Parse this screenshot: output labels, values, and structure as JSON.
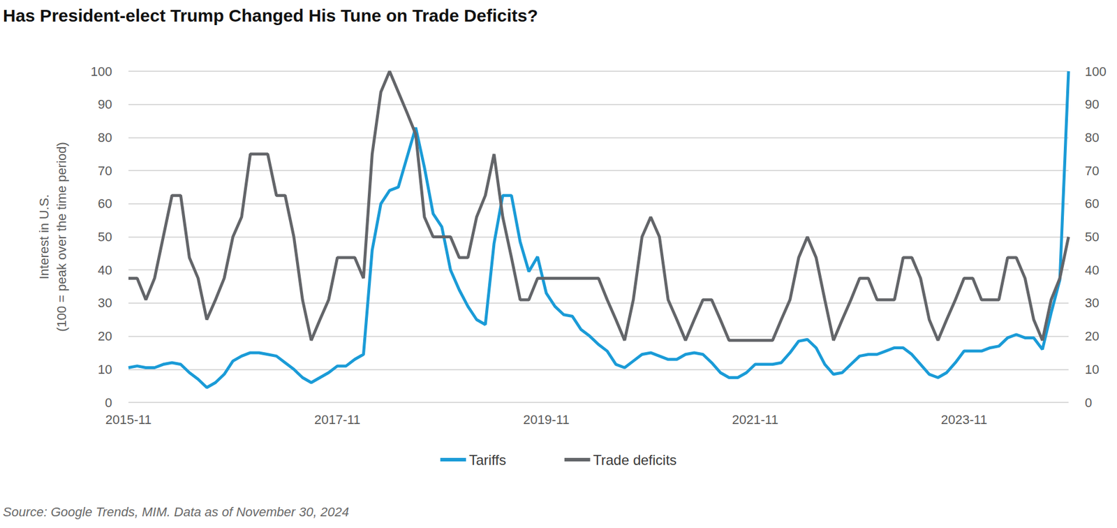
{
  "chart_data": {
    "type": "line",
    "title": "Has President-elect Trump Changed His Tune on Trade Deficits?",
    "y_label": "Interest in U.S.\n(100 = peak over the time period)",
    "source": "Source: Google Trends, MIM. Data as of November 30, 2024",
    "categories": [
      "2015-11",
      null,
      null,
      null,
      null,
      null,
      null,
      null,
      null,
      null,
      null,
      null,
      null,
      null,
      null,
      null,
      null,
      null,
      null,
      null,
      null,
      null,
      null,
      null,
      "2017-11",
      null,
      null,
      null,
      null,
      null,
      null,
      null,
      null,
      null,
      null,
      null,
      null,
      null,
      null,
      null,
      null,
      null,
      null,
      null,
      null,
      null,
      null,
      null,
      "2019-11",
      null,
      null,
      null,
      null,
      null,
      null,
      null,
      null,
      null,
      null,
      null,
      null,
      null,
      null,
      null,
      null,
      null,
      null,
      null,
      null,
      null,
      null,
      null,
      "2021-11",
      null,
      null,
      null,
      null,
      null,
      null,
      null,
      null,
      null,
      null,
      null,
      null,
      null,
      null,
      null,
      null,
      null,
      null,
      null,
      null,
      null,
      null,
      null,
      "2023-11",
      null,
      null,
      null,
      null,
      null,
      null,
      null,
      null,
      null,
      null,
      null,
      null
    ],
    "series": [
      {
        "name": "Tariffs",
        "color": "#1a9bd7",
        "axis": "y",
        "values": [
          10.5,
          11,
          10.5,
          10.5,
          11.5,
          12,
          11.5,
          9,
          7,
          4.5,
          6,
          8.5,
          12.5,
          14,
          15,
          15,
          14.5,
          14,
          12,
          10,
          7.5,
          6,
          7.5,
          9,
          11,
          11,
          13,
          14.5,
          46,
          60,
          64,
          65,
          74,
          83,
          71,
          57,
          53,
          40,
          34,
          29,
          25,
          23.5,
          48,
          62.5,
          62.5,
          48.5,
          39.5,
          44,
          33,
          29,
          26.5,
          26,
          22,
          20,
          17.5,
          15.5,
          11.5,
          10.5,
          12.5,
          14.5,
          15,
          14,
          13,
          13,
          14.5,
          15,
          14.5,
          12,
          9,
          7.5,
          7.5,
          9,
          11.5,
          11.5,
          11.5,
          12,
          15,
          18.5,
          19,
          16.5,
          11.5,
          8.5,
          9,
          11.5,
          14,
          14.5,
          14.5,
          15.5,
          16.5,
          16.5,
          14.5,
          11.5,
          8.5,
          7.5,
          9,
          12,
          15.5,
          15.5,
          15.5,
          16.5,
          17,
          19.5,
          20.5,
          19.5,
          19.5,
          16,
          27,
          37,
          100
        ]
      },
      {
        "name": "Trade deficits",
        "color": "#636569",
        "axis": "y2",
        "values": [
          37.5,
          37.5,
          31,
          37.5,
          50,
          62.5,
          62.5,
          43.75,
          37.5,
          25,
          31,
          37.5,
          50,
          56,
          75,
          75,
          75,
          62.5,
          62.5,
          50,
          31,
          18.75,
          25,
          31,
          43.75,
          43.75,
          43.75,
          37.5,
          75,
          93.75,
          100,
          93.75,
          87.5,
          81,
          56,
          50,
          50,
          50,
          43.75,
          43.75,
          56,
          62.5,
          75,
          56,
          43.75,
          31,
          31,
          37.5,
          37.5,
          37.5,
          37.5,
          37.5,
          37.5,
          37.5,
          37.5,
          31,
          25,
          18.75,
          31,
          50,
          56,
          50,
          31,
          25,
          18.75,
          25,
          31,
          31,
          25,
          18.75,
          18.75,
          18.75,
          18.75,
          18.75,
          18.75,
          25,
          31,
          43.75,
          50,
          43.75,
          31,
          18.75,
          25,
          31,
          37.5,
          37.5,
          31,
          31,
          31,
          43.75,
          43.75,
          37.5,
          25,
          18.75,
          25,
          31,
          37.5,
          37.5,
          31,
          31,
          31,
          43.75,
          43.75,
          37.5,
          25,
          18.75,
          31,
          37.5,
          50
        ]
      }
    ],
    "ylim": [
      0,
      100
    ],
    "yticks": [
      0,
      10,
      20,
      30,
      40,
      50,
      60,
      70,
      80,
      90,
      100
    ],
    "y2lim": [
      0,
      100
    ],
    "y2ticks": [
      0,
      10,
      20,
      30,
      40,
      50,
      60,
      70,
      80,
      90,
      100
    ],
    "grid": true,
    "legend": "bottom"
  }
}
